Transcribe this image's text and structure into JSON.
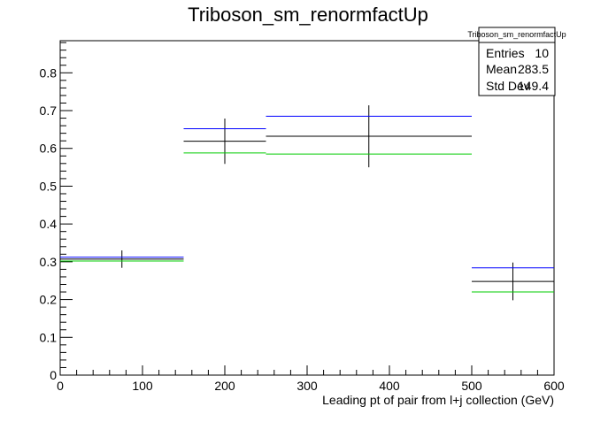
{
  "chart_data": {
    "type": "histogram",
    "title": "Triboson_sm_renormfactUp",
    "xlabel": "Leading pt of pair from l+j collection (GeV)",
    "ylabel": "",
    "xlim": [
      0,
      600
    ],
    "ylim": [
      0,
      0.885
    ],
    "x_ticks": [
      0,
      100,
      200,
      300,
      400,
      500,
      600
    ],
    "y_ticks": [
      0,
      0.1,
      0.2,
      0.3,
      0.4,
      0.5,
      0.6,
      0.7,
      0.8
    ],
    "bin_edges": [
      [
        0,
        150
      ],
      [
        150,
        250
      ],
      [
        250,
        500
      ],
      [
        500,
        600
      ]
    ],
    "bin_centers": [
      75,
      200,
      375,
      550
    ],
    "series": [
      {
        "color": "#000000",
        "values": [
          0.307,
          0.619,
          0.632,
          0.248
        ],
        "errors": [
          0.023,
          0.06,
          0.082,
          0.05
        ]
      },
      {
        "color": "#0000ff",
        "values": [
          0.312,
          0.652,
          0.685,
          0.284
        ],
        "errors": [
          0.0,
          0.0,
          0.0,
          0.0
        ]
      },
      {
        "color": "#00cc00",
        "values": [
          0.302,
          0.588,
          0.585,
          0.22
        ],
        "errors": [
          0.0,
          0.0,
          0.0,
          0.0
        ]
      }
    ],
    "stats": {
      "name": "Triboson_sm_renormfactUp",
      "rows": [
        {
          "label": "Entries",
          "value": "10"
        },
        {
          "label": "Mean",
          "value": "283.5"
        },
        {
          "label": "Std Dev",
          "value": "149.4"
        }
      ]
    },
    "grid": false,
    "legend": "none"
  }
}
